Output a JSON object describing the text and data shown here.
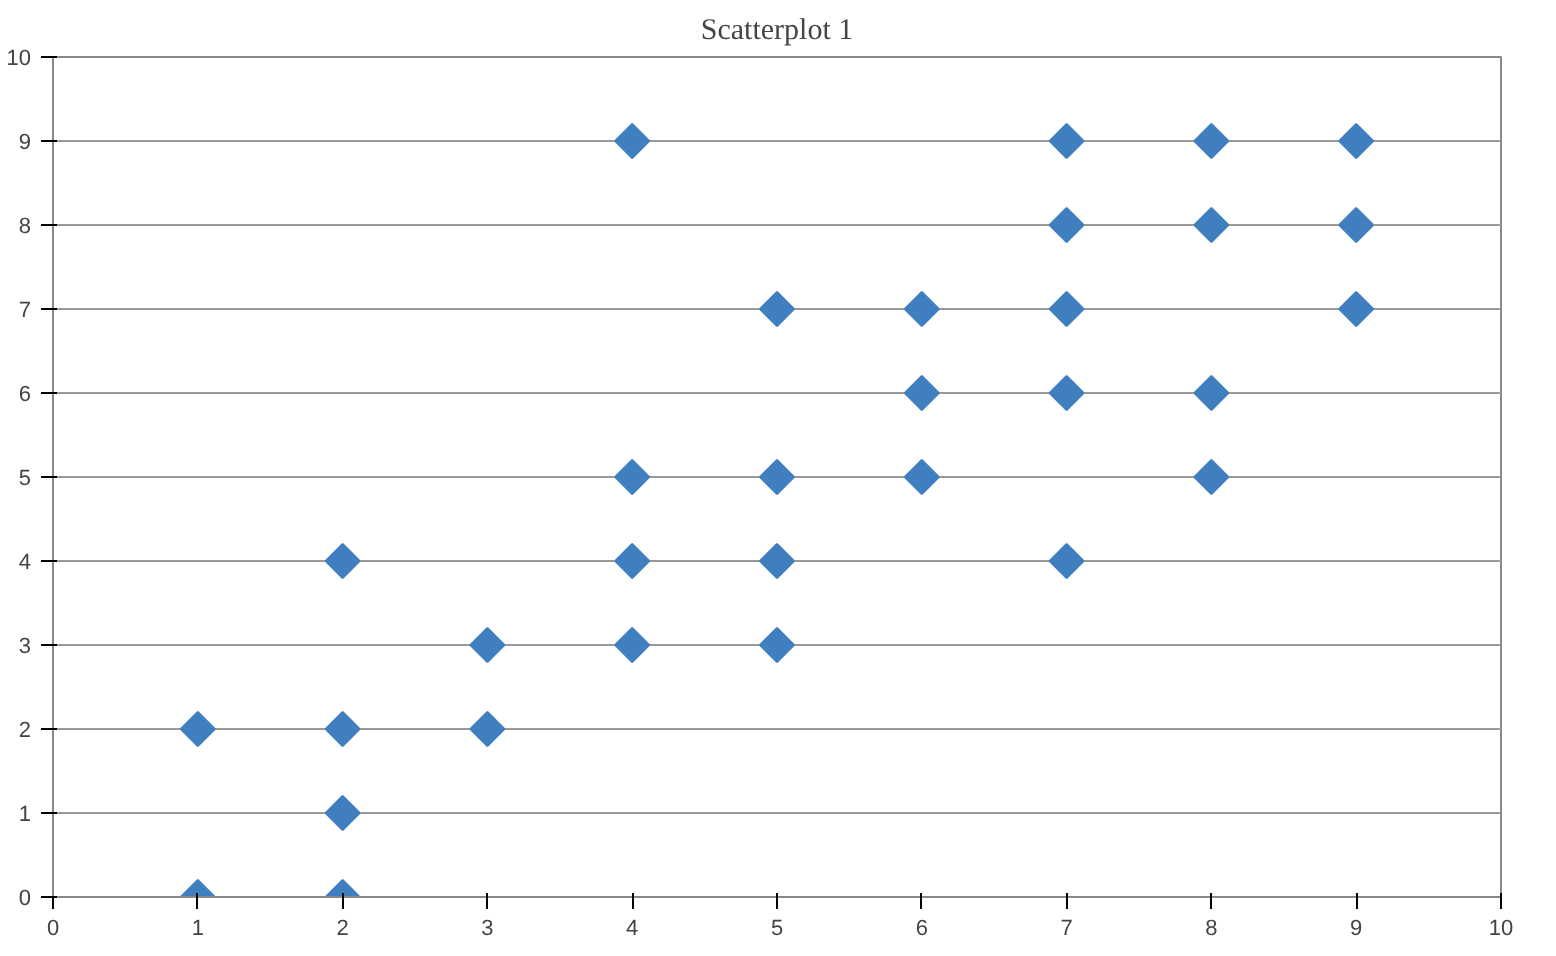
{
  "chart_data": {
    "type": "scatter",
    "title": "Scatterplot 1",
    "x": [
      1,
      1,
      2,
      2,
      2,
      2,
      3,
      3,
      4,
      4,
      4,
      4,
      5,
      5,
      5,
      5,
      6,
      6,
      6,
      7,
      7,
      7,
      7,
      7,
      8,
      8,
      8,
      8,
      9,
      9,
      9
    ],
    "series": [
      {
        "color": "#3f7fc0",
        "values": [
          0,
          2,
          0,
          1,
          2,
          4,
          2,
          3,
          3,
          4,
          5,
          9,
          3,
          4,
          5,
          7,
          5,
          6,
          7,
          4,
          6,
          7,
          8,
          9,
          5,
          6,
          8,
          9,
          7,
          8,
          9
        ]
      }
    ],
    "xlim": [
      0,
      10
    ],
    "ylim": [
      0,
      10
    ],
    "xticks": [
      0,
      1,
      2,
      3,
      4,
      5,
      6,
      7,
      8,
      9,
      10
    ],
    "yticks": [
      0,
      1,
      2,
      3,
      4,
      5,
      6,
      7,
      8,
      9,
      10
    ],
    "grid": "y",
    "marker": "diamond"
  }
}
